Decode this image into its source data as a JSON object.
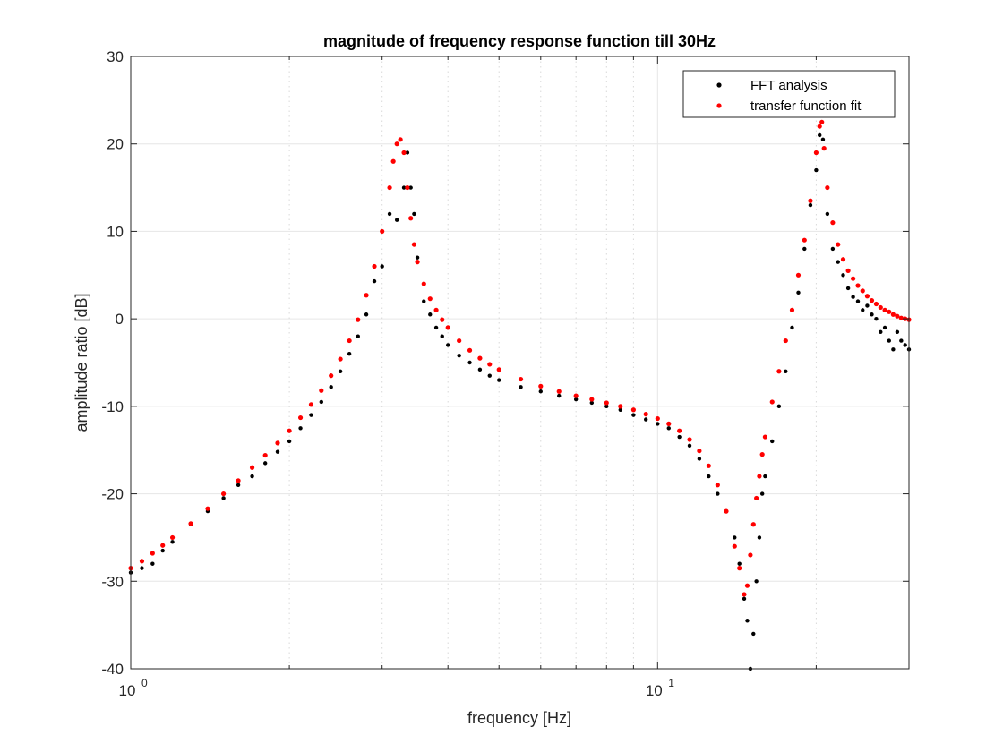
{
  "chart_data": {
    "type": "scatter",
    "title": "magnitude of frequency response function till 30Hz",
    "xlabel": "frequency [Hz]",
    "ylabel": "amplitude ratio [dB]",
    "x_scale": "log",
    "xlim": [
      1,
      30
    ],
    "ylim": [
      -40,
      30
    ],
    "yticks": [
      -40,
      -30,
      -20,
      -10,
      0,
      10,
      20,
      30
    ],
    "ytick_labels": [
      "-40",
      "-30",
      "-20",
      "-10",
      "0",
      "10",
      "20",
      "30"
    ],
    "xtick_labels": [
      {
        "base": "10",
        "exp": "0",
        "value": 1
      },
      {
        "base": "10",
        "exp": "1",
        "value": 10
      }
    ],
    "grid": true,
    "legend_position": "top-right",
    "series": [
      {
        "name": "FFT analysis",
        "color": "#000000",
        "x": [
          1.0,
          1.05,
          1.1,
          1.15,
          1.2,
          1.3,
          1.4,
          1.5,
          1.6,
          1.7,
          1.8,
          1.9,
          2.0,
          2.1,
          2.2,
          2.3,
          2.4,
          2.5,
          2.6,
          2.7,
          2.8,
          2.9,
          3.0,
          3.1,
          3.2,
          3.3,
          3.35,
          3.4,
          3.45,
          3.5,
          3.6,
          3.7,
          3.8,
          3.9,
          4.0,
          4.2,
          4.4,
          4.6,
          4.8,
          5.0,
          5.5,
          6.0,
          6.5,
          7.0,
          7.5,
          8.0,
          8.5,
          9.0,
          9.5,
          10.0,
          10.5,
          11.0,
          11.5,
          12.0,
          12.5,
          13.0,
          13.5,
          14.0,
          14.3,
          14.6,
          14.8,
          15.0,
          15.2,
          15.4,
          15.6,
          15.8,
          16.0,
          16.5,
          17.0,
          17.5,
          18.0,
          18.5,
          19.0,
          19.5,
          20.0,
          20.3,
          20.6,
          21.0,
          21.5,
          22.0,
          22.5,
          23.0,
          23.5,
          24.0,
          24.5,
          25.0,
          25.5,
          26.0,
          26.5,
          27.0,
          27.5,
          28.0,
          28.5,
          29.0,
          29.5,
          30.0
        ],
        "y": [
          -29,
          -28.5,
          -28,
          -26.5,
          -25.5,
          -23.5,
          -22,
          -20.5,
          -19,
          -18,
          -16.5,
          -15.2,
          -14,
          -12.5,
          -11,
          -9.5,
          -7.8,
          -6,
          -4,
          -2,
          0.5,
          4.3,
          6,
          12,
          11.3,
          15,
          19,
          15,
          12,
          7,
          2,
          0.5,
          -1,
          -2,
          -3,
          -4.2,
          -5,
          -5.8,
          -6.5,
          -7,
          -7.8,
          -8.3,
          -8.8,
          -9.2,
          -9.6,
          -10,
          -10.4,
          -11,
          -11.5,
          -12,
          -12.5,
          -13.5,
          -14.5,
          -16,
          -18,
          -20,
          -22,
          -25,
          -28,
          -32,
          -34.5,
          -40,
          -36,
          -30,
          -25,
          -20,
          -18,
          -14,
          -10,
          -6,
          -1,
          3,
          8,
          13,
          17,
          21,
          20.5,
          12,
          8,
          6.5,
          5,
          3.5,
          2.5,
          2,
          1,
          1.5,
          0.5,
          0,
          -1.5,
          -1,
          -2.5,
          -3.5,
          -1.5,
          -2.5,
          -3,
          -3.5
        ]
      },
      {
        "name": "transfer function fit",
        "color": "#ff0000",
        "x": [
          1.0,
          1.05,
          1.1,
          1.15,
          1.2,
          1.3,
          1.4,
          1.5,
          1.6,
          1.7,
          1.8,
          1.9,
          2.0,
          2.1,
          2.2,
          2.3,
          2.4,
          2.5,
          2.6,
          2.7,
          2.8,
          2.9,
          3.0,
          3.1,
          3.15,
          3.2,
          3.25,
          3.3,
          3.35,
          3.4,
          3.45,
          3.5,
          3.6,
          3.7,
          3.8,
          3.9,
          4.0,
          4.2,
          4.4,
          4.6,
          4.8,
          5.0,
          5.5,
          6.0,
          6.5,
          7.0,
          7.5,
          8.0,
          8.5,
          9.0,
          9.5,
          10.0,
          10.5,
          11.0,
          11.5,
          12.0,
          12.5,
          13.0,
          13.5,
          14.0,
          14.3,
          14.6,
          14.8,
          15.0,
          15.2,
          15.4,
          15.6,
          15.8,
          16.0,
          16.5,
          17.0,
          17.5,
          18.0,
          18.5,
          19.0,
          19.5,
          20.0,
          20.3,
          20.5,
          20.7,
          21.0,
          21.5,
          22.0,
          22.5,
          23.0,
          23.5,
          24.0,
          24.5,
          25.0,
          25.5,
          26.0,
          26.5,
          27.0,
          27.5,
          28.0,
          28.5,
          29.0,
          29.5,
          30.0
        ],
        "y": [
          -28.5,
          -27.7,
          -26.8,
          -25.9,
          -25.0,
          -23.4,
          -21.7,
          -20.0,
          -18.5,
          -17.0,
          -15.6,
          -14.2,
          -12.8,
          -11.3,
          -9.8,
          -8.2,
          -6.5,
          -4.6,
          -2.5,
          -0.1,
          2.7,
          6.0,
          10.0,
          15.0,
          18.0,
          20.0,
          20.5,
          19.0,
          15.0,
          11.5,
          8.5,
          6.5,
          4.0,
          2.3,
          1.0,
          -0.1,
          -1.0,
          -2.5,
          -3.6,
          -4.5,
          -5.2,
          -5.8,
          -6.9,
          -7.7,
          -8.3,
          -8.8,
          -9.2,
          -9.6,
          -10.0,
          -10.4,
          -10.9,
          -11.4,
          -12.0,
          -12.8,
          -13.8,
          -15.1,
          -16.8,
          -19.0,
          -22.0,
          -26.0,
          -28.5,
          -31.5,
          -30.5,
          -27.0,
          -23.5,
          -20.5,
          -18.0,
          -15.5,
          -13.5,
          -9.5,
          -6.0,
          -2.5,
          1.0,
          5.0,
          9.0,
          13.5,
          19.0,
          22.0,
          22.5,
          19.5,
          15.0,
          11.0,
          8.5,
          6.8,
          5.5,
          4.6,
          3.8,
          3.2,
          2.6,
          2.1,
          1.7,
          1.3,
          1.0,
          0.8,
          0.5,
          0.3,
          0.1,
          0.0,
          -0.1
        ]
      }
    ]
  }
}
